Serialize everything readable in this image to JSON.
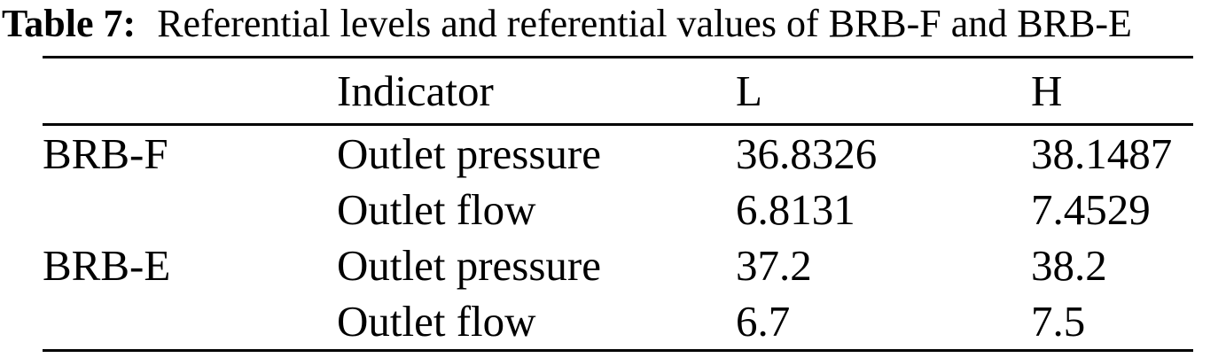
{
  "caption": {
    "label": "Table 7:",
    "text": "Referential levels and referential values of BRB-F and BRB-E"
  },
  "columns": [
    "",
    "Indicator",
    "L",
    "H"
  ],
  "rows": [
    {
      "group": "BRB-F",
      "indicator": "Outlet pressure",
      "l": "36.8326",
      "h": "38.1487"
    },
    {
      "group": "",
      "indicator": "Outlet flow",
      "l": "6.8131",
      "h": "7.4529"
    },
    {
      "group": "BRB-E",
      "indicator": "Outlet pressure",
      "l": "37.2",
      "h": "38.2"
    },
    {
      "group": "",
      "indicator": "Outlet flow",
      "l": "6.7",
      "h": "7.5"
    }
  ]
}
